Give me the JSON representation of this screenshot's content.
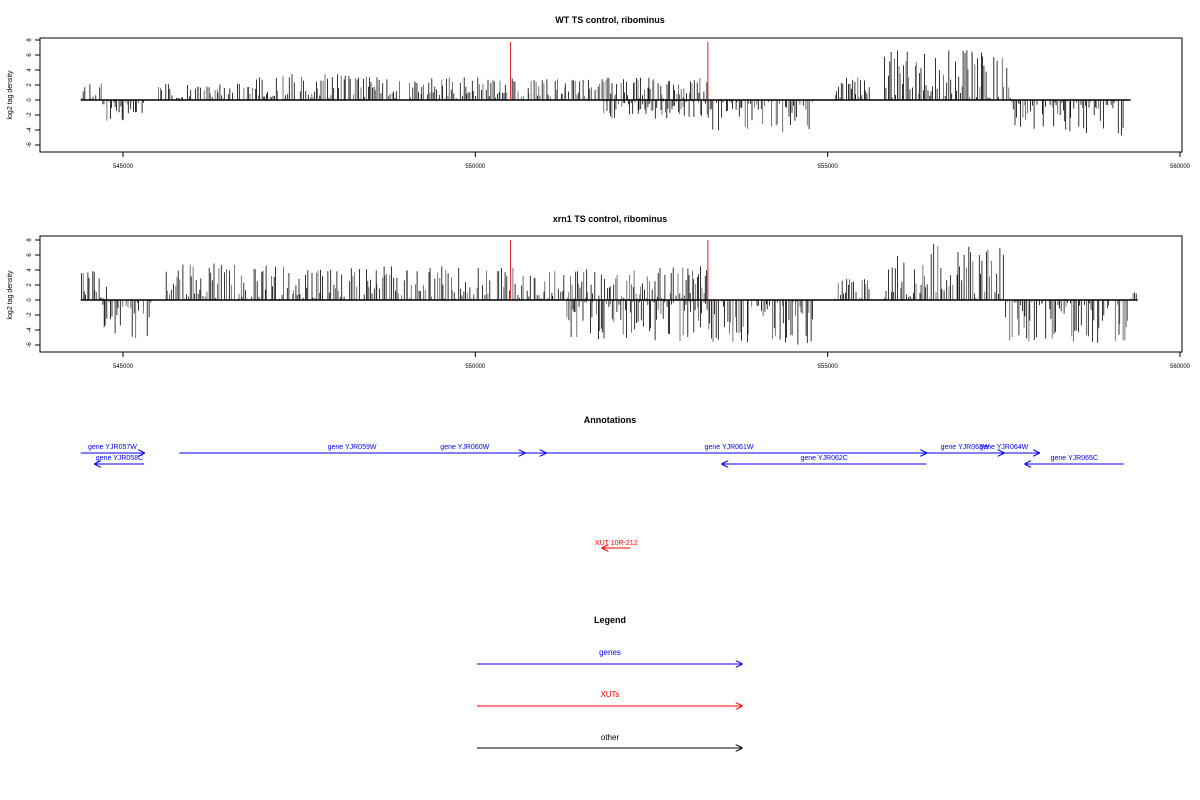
{
  "chart_data": [
    {
      "type": "bar",
      "title": "WT TS control, ribominus",
      "ylabel": "log2 tag density",
      "xlabel": "",
      "xlim": [
        543000,
        560000
      ],
      "ylim": [
        -7,
        8.5
      ],
      "xticks": [
        545000,
        550000,
        555000,
        560000
      ],
      "xtick_labels": [
        "545000",
        "550000",
        "555000",
        "560000"
      ],
      "yticks": [
        -6,
        -4,
        -2,
        0,
        2,
        4,
        6,
        8
      ],
      "ytick_labels": [
        "-6",
        "-4",
        "-2",
        "0",
        "2",
        "4",
        "6",
        "8"
      ],
      "baseline_range": [
        544400,
        559300
      ],
      "markers": [
        {
          "x": 550500,
          "color": "#d62728"
        },
        {
          "x": 553300,
          "color": "#d62728"
        }
      ],
      "regions": [
        {
          "start": 544400,
          "end": 544700,
          "sign": 1,
          "max": 2.5
        },
        {
          "start": 544700,
          "end": 545300,
          "sign": -1,
          "max": 3.5
        },
        {
          "start": 545500,
          "end": 546800,
          "sign": 1,
          "max": 2.2
        },
        {
          "start": 546800,
          "end": 548400,
          "sign": 1,
          "max": 3.5
        },
        {
          "start": 548400,
          "end": 550100,
          "sign": 1,
          "max": 3.2
        },
        {
          "start": 550100,
          "end": 552000,
          "sign": 1,
          "max": 3.0
        },
        {
          "start": 551800,
          "end": 553300,
          "sign": -1,
          "max": 2.5
        },
        {
          "start": 552000,
          "end": 553300,
          "sign": 1,
          "max": 3.0
        },
        {
          "start": 553300,
          "end": 554800,
          "sign": -1,
          "max": 4.5
        },
        {
          "start": 555100,
          "end": 555600,
          "sign": 1,
          "max": 3.0
        },
        {
          "start": 555800,
          "end": 557600,
          "sign": 1,
          "max": 6.7
        },
        {
          "start": 557600,
          "end": 559200,
          "sign": -1,
          "max": 4.8
        }
      ]
    },
    {
      "type": "bar",
      "title": "xrn1 TS control, ribominus",
      "ylabel": "log2 tag density",
      "xlabel": "",
      "xlim": [
        543000,
        560000
      ],
      "ylim": [
        -7,
        8.5
      ],
      "xticks": [
        545000,
        550000,
        555000,
        560000
      ],
      "xtick_labels": [
        "545000",
        "550000",
        "555000",
        "560000"
      ],
      "yticks": [
        -6,
        -4,
        -2,
        0,
        2,
        4,
        6,
        8
      ],
      "ytick_labels": [
        "-6",
        "-4",
        "-2",
        "0",
        "2",
        "4",
        "6",
        "8"
      ],
      "baseline_range": [
        544400,
        559400
      ],
      "markers": [
        {
          "x": 550500,
          "color": "#d62728"
        },
        {
          "x": 553300,
          "color": "#d62728"
        }
      ],
      "regions": [
        {
          "start": 544400,
          "end": 544800,
          "sign": 1,
          "max": 4.0
        },
        {
          "start": 544700,
          "end": 545400,
          "sign": -1,
          "max": 5.5
        },
        {
          "start": 545600,
          "end": 547300,
          "sign": 1,
          "max": 5.0
        },
        {
          "start": 547300,
          "end": 548600,
          "sign": 1,
          "max": 4.5
        },
        {
          "start": 548600,
          "end": 550100,
          "sign": 1,
          "max": 4.5
        },
        {
          "start": 550100,
          "end": 552000,
          "sign": 1,
          "max": 4.5
        },
        {
          "start": 551300,
          "end": 553300,
          "sign": -1,
          "max": 5.5
        },
        {
          "start": 552000,
          "end": 553300,
          "sign": 1,
          "max": 4.5
        },
        {
          "start": 553300,
          "end": 554800,
          "sign": -1,
          "max": 6.0
        },
        {
          "start": 555100,
          "end": 555600,
          "sign": 1,
          "max": 3.0
        },
        {
          "start": 555800,
          "end": 557500,
          "sign": 1,
          "max": 7.5
        },
        {
          "start": 557500,
          "end": 559300,
          "sign": -1,
          "max": 5.8
        },
        {
          "start": 559300,
          "end": 559400,
          "sign": 1,
          "max": 1.0
        }
      ]
    }
  ],
  "annotations": {
    "title": "Annotations",
    "genes": [
      {
        "label": "gene YJR057W",
        "start": 544400,
        "end": 545300,
        "strand": "+",
        "row": 0
      },
      {
        "label": "gene YJR058C",
        "start": 544600,
        "end": 545300,
        "strand": "-",
        "row": 1
      },
      {
        "label": "gene YJR059W",
        "start": 545800,
        "end": 550700,
        "strand": "+",
        "row": 0
      },
      {
        "label": "gene YJR060W",
        "start": 548700,
        "end": 551000,
        "strand": "+",
        "row": 0
      },
      {
        "label": "gene YJR061W",
        "start": 550800,
        "end": 556400,
        "strand": "+",
        "row": 0
      },
      {
        "label": "gene YJR062C",
        "start": 553500,
        "end": 556400,
        "strand": "-",
        "row": 1
      },
      {
        "label": "gene YJR063W",
        "start": 556400,
        "end": 557500,
        "strand": "+",
        "row": 0
      },
      {
        "label": "gene YJR064W",
        "start": 557000,
        "end": 558000,
        "strand": "+",
        "row": 0
      },
      {
        "label": "gene YJR065C",
        "start": 557800,
        "end": 559200,
        "strand": "-",
        "row": 1
      }
    ],
    "xuts": [
      {
        "label": "XUT 10R-212",
        "start": 551800,
        "end": 552200,
        "strand": "-"
      }
    ]
  },
  "legend": {
    "title": "Legend",
    "items": [
      {
        "label": "genes",
        "color": "#0000ff"
      },
      {
        "label": "XUTs",
        "color": "#ff0000"
      },
      {
        "label": "other",
        "color": "#000000"
      }
    ]
  }
}
